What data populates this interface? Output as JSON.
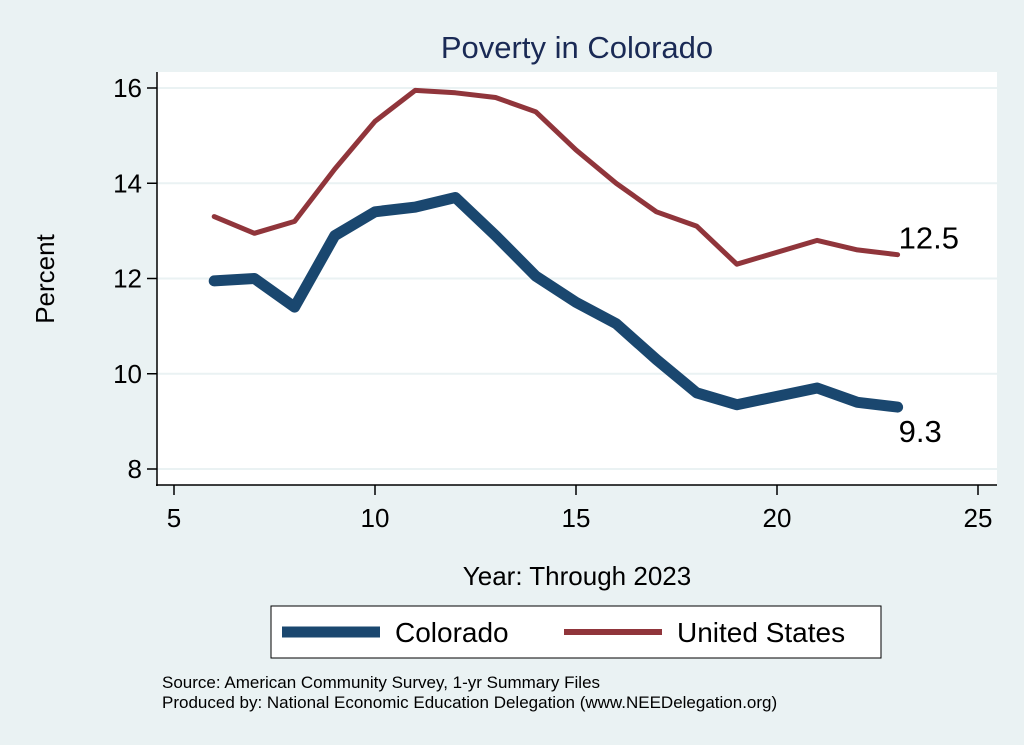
{
  "chart_data": {
    "type": "line",
    "title": "Poverty in Colorado",
    "xlabel": "Year: Through 2023",
    "ylabel": "Percent",
    "xlim": [
      5,
      25
    ],
    "ylim": [
      7.7,
      16.3
    ],
    "xticks": [
      5,
      10,
      15,
      20,
      25
    ],
    "yticks": [
      8,
      10,
      12,
      14,
      16
    ],
    "grid": "horizontal",
    "legend_position": "bottom",
    "series": [
      {
        "name": "Colorado",
        "color": "#1a476f",
        "x": [
          6,
          7,
          8,
          9,
          10,
          11,
          12,
          13,
          14,
          15,
          16,
          17,
          18,
          19,
          21,
          22,
          23
        ],
        "values": [
          11.95,
          12.0,
          11.4,
          12.9,
          13.4,
          13.5,
          13.7,
          12.9,
          12.05,
          11.5,
          11.05,
          10.3,
          9.6,
          9.35,
          9.7,
          9.4,
          9.3
        ],
        "end_label": "9.3"
      },
      {
        "name": "United States",
        "color": "#90353b",
        "x": [
          6,
          7,
          8,
          9,
          10,
          11,
          12,
          13,
          14,
          15,
          16,
          17,
          18,
          19,
          21,
          22,
          23
        ],
        "values": [
          13.3,
          12.95,
          13.2,
          14.3,
          15.3,
          15.95,
          15.9,
          15.8,
          15.5,
          14.7,
          14.0,
          13.4,
          13.1,
          12.3,
          12.8,
          12.6,
          12.5
        ],
        "end_label": "12.5"
      }
    ],
    "notes": [
      "Source: American Community Survey, 1-yr Summary Files",
      "Produced by: National Economic Education Delegation (www.NEEDelegation.org)"
    ]
  }
}
